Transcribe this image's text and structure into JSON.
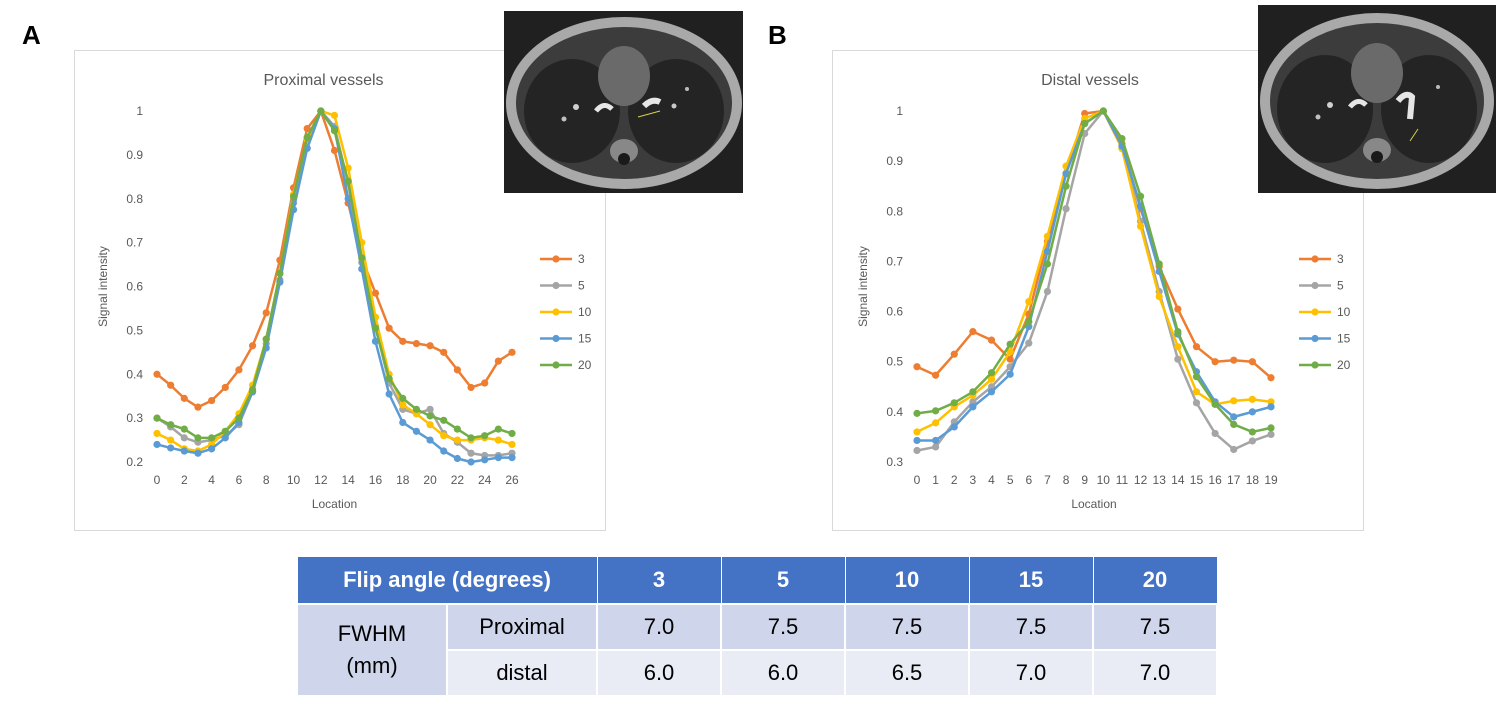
{
  "panels": {
    "a_letter": "A",
    "b_letter": "B"
  },
  "chart_data": [
    {
      "type": "line",
      "title": "Proximal vessels",
      "xlabel": "Location",
      "ylabel": "Signal intensity",
      "x": [
        0,
        1,
        2,
        3,
        4,
        5,
        6,
        7,
        8,
        9,
        10,
        11,
        12,
        13,
        14,
        15,
        16,
        17,
        18,
        19,
        20,
        21,
        22,
        23,
        24,
        25,
        26
      ],
      "xticks": [
        "0",
        "2",
        "4",
        "6",
        "8",
        "10",
        "12",
        "14",
        "16",
        "18",
        "20",
        "22",
        "24",
        "26"
      ],
      "ylim": [
        0.2,
        1.0
      ],
      "yticks": [
        "0.2",
        "0.3",
        "0.4",
        "0.5",
        "0.6",
        "0.7",
        "0.8",
        "0.9",
        "1"
      ],
      "legend_position": "right",
      "series": [
        {
          "name": "3",
          "color": "#ed7d31",
          "values": [
            0.4,
            0.375,
            0.345,
            0.325,
            0.34,
            0.37,
            0.41,
            0.465,
            0.54,
            0.66,
            0.825,
            0.96,
            1.0,
            0.91,
            0.79,
            0.665,
            0.585,
            0.505,
            0.475,
            0.47,
            0.465,
            0.45,
            0.41,
            0.37,
            0.38,
            0.43,
            0.45
          ]
        },
        {
          "name": "5",
          "color": "#a5a5a5",
          "values": [
            0.3,
            0.28,
            0.255,
            0.245,
            0.25,
            0.26,
            0.285,
            0.36,
            0.47,
            0.615,
            0.79,
            0.915,
            1.0,
            0.965,
            0.835,
            0.655,
            0.51,
            0.38,
            0.32,
            0.31,
            0.32,
            0.265,
            0.245,
            0.22,
            0.215,
            0.215,
            0.22
          ]
        },
        {
          "name": "10",
          "color": "#ffc000",
          "values": [
            0.265,
            0.25,
            0.23,
            0.225,
            0.24,
            0.27,
            0.31,
            0.375,
            0.48,
            0.63,
            0.81,
            0.935,
            1.0,
            0.99,
            0.87,
            0.7,
            0.53,
            0.4,
            0.33,
            0.31,
            0.285,
            0.26,
            0.25,
            0.25,
            0.255,
            0.25,
            0.24
          ]
        },
        {
          "name": "15",
          "color": "#5b9bd5",
          "values": [
            0.24,
            0.232,
            0.225,
            0.22,
            0.23,
            0.255,
            0.29,
            0.36,
            0.46,
            0.61,
            0.775,
            0.915,
            1.0,
            0.96,
            0.8,
            0.64,
            0.475,
            0.355,
            0.29,
            0.27,
            0.25,
            0.225,
            0.208,
            0.2,
            0.205,
            0.21,
            0.21
          ]
        },
        {
          "name": "20",
          "color": "#70ad47",
          "values": [
            0.3,
            0.285,
            0.275,
            0.255,
            0.255,
            0.27,
            0.3,
            0.365,
            0.48,
            0.63,
            0.805,
            0.94,
            1.0,
            0.955,
            0.84,
            0.665,
            0.505,
            0.39,
            0.345,
            0.32,
            0.305,
            0.295,
            0.275,
            0.255,
            0.26,
            0.275,
            0.265
          ]
        }
      ]
    },
    {
      "type": "line",
      "title": "Distal vessels",
      "xlabel": "Location",
      "ylabel": "Signal intensity",
      "x": [
        0,
        1,
        2,
        3,
        4,
        5,
        6,
        7,
        8,
        9,
        10,
        11,
        12,
        13,
        14,
        15,
        16,
        17,
        18,
        19
      ],
      "xticks": [
        "0",
        "1",
        "2",
        "3",
        "4",
        "5",
        "6",
        "7",
        "8",
        "9",
        "10",
        "11",
        "12",
        "13",
        "14",
        "15",
        "16",
        "17",
        "18",
        "19"
      ],
      "ylim": [
        0.3,
        1.0
      ],
      "yticks": [
        "0.3",
        "0.4",
        "0.5",
        "0.6",
        "0.7",
        "0.8",
        "0.9",
        "1"
      ],
      "legend_position": "right",
      "series": [
        {
          "name": "3",
          "color": "#ed7d31",
          "values": [
            0.49,
            0.473,
            0.515,
            0.56,
            0.543,
            0.505,
            0.595,
            0.74,
            0.875,
            0.995,
            1.0,
            0.935,
            0.805,
            0.69,
            0.605,
            0.53,
            0.5,
            0.503,
            0.5,
            0.468
          ]
        },
        {
          "name": "5",
          "color": "#a5a5a5",
          "values": [
            0.323,
            0.33,
            0.38,
            0.42,
            0.45,
            0.49,
            0.537,
            0.64,
            0.805,
            0.955,
            1.0,
            0.93,
            0.78,
            0.64,
            0.505,
            0.418,
            0.357,
            0.325,
            0.342,
            0.355
          ]
        },
        {
          "name": "10",
          "color": "#ffc000",
          "values": [
            0.36,
            0.378,
            0.41,
            0.433,
            0.465,
            0.52,
            0.62,
            0.75,
            0.89,
            0.985,
            1.0,
            0.925,
            0.77,
            0.63,
            0.53,
            0.44,
            0.415,
            0.422,
            0.425,
            0.42
          ]
        },
        {
          "name": "15",
          "color": "#5b9bd5",
          "values": [
            0.343,
            0.343,
            0.37,
            0.41,
            0.44,
            0.475,
            0.57,
            0.72,
            0.875,
            0.975,
            1.0,
            0.93,
            0.81,
            0.68,
            0.555,
            0.48,
            0.42,
            0.39,
            0.4,
            0.41
          ]
        },
        {
          "name": "20",
          "color": "#70ad47",
          "values": [
            0.397,
            0.402,
            0.418,
            0.44,
            0.478,
            0.535,
            0.58,
            0.695,
            0.85,
            0.975,
            1.0,
            0.945,
            0.83,
            0.695,
            0.56,
            0.47,
            0.415,
            0.375,
            0.36,
            0.368
          ]
        }
      ]
    }
  ],
  "table": {
    "header_label": "Flip angle (degrees)",
    "flip_angles": [
      "3",
      "5",
      "10",
      "15",
      "20"
    ],
    "group_label_line1": "FWHM",
    "group_label_line2": "(mm)",
    "rows": [
      {
        "label": "Proximal",
        "values": [
          "7.0",
          "7.5",
          "7.5",
          "7.5",
          "7.5"
        ]
      },
      {
        "label": "distal",
        "values": [
          "6.0",
          "6.0",
          "6.5",
          "7.0",
          "7.0"
        ]
      }
    ]
  }
}
